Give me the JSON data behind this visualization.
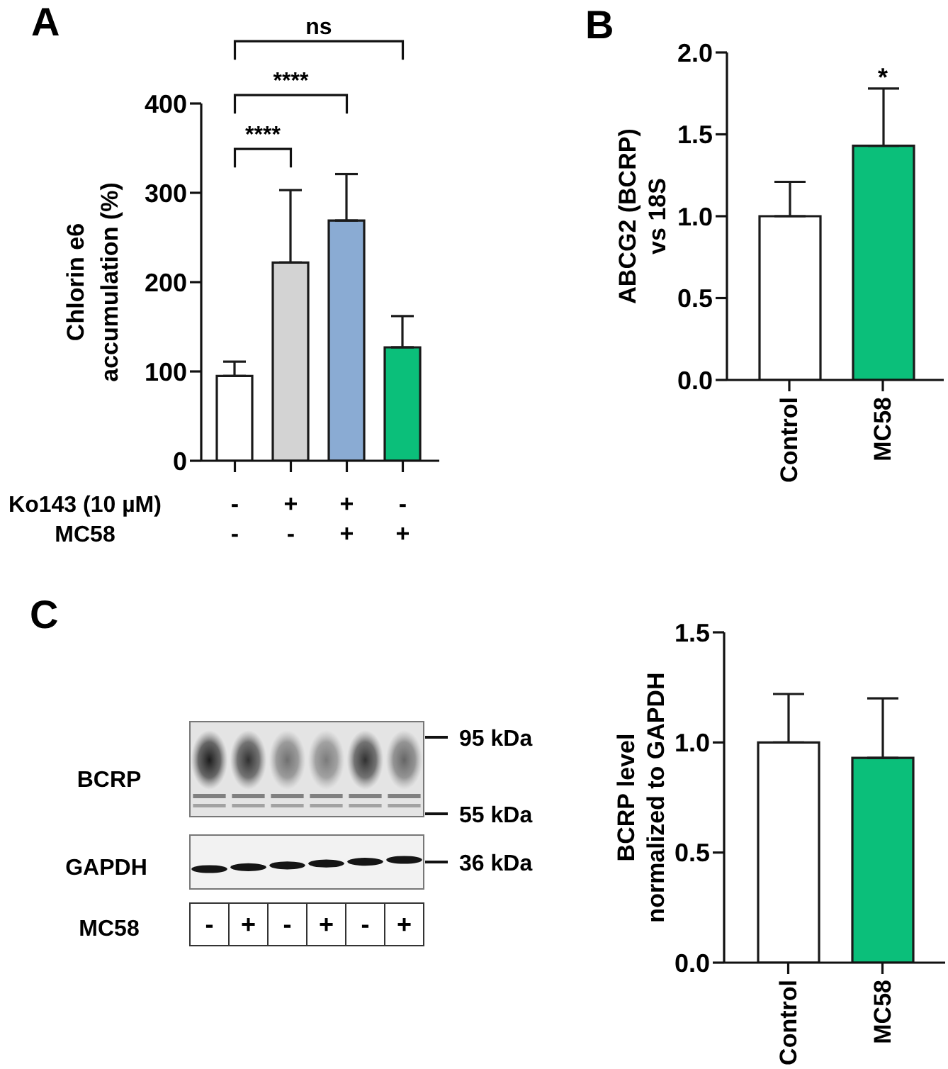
{
  "chart_data": [
    {
      "type": "bar",
      "title": "A",
      "ylabel": "Chlorin e6\naccumulation (%)",
      "categories": [
        "-\n-",
        "+\n-",
        "+\n+",
        "-\n+"
      ],
      "values": [
        95,
        222,
        269,
        127
      ],
      "colors": [
        "#ffffff",
        "#d3d3d3",
        "#8aabd3",
        "#0bbf7a"
      ],
      "errors": [
        [
          95,
          111
        ],
        [
          222,
          303
        ],
        [
          269,
          321
        ],
        [
          127,
          162
        ]
      ],
      "ylim": [
        0,
        400
      ],
      "yticks": [
        0,
        100,
        200,
        300,
        400
      ],
      "annotations": [
        "ns",
        "****",
        "****",
        "Ko143 (10 µM)",
        "MC58"
      ]
    },
    {
      "type": "bar",
      "title": "B",
      "ylabel": "ABCG2 (BCRP)\nvs 18S",
      "categories": [
        "Control",
        "MC58"
      ],
      "values": [
        1.0,
        1.43
      ],
      "colors": [
        "#ffffff",
        "#0bbf7a"
      ],
      "errors": [
        [
          1.0,
          1.21
        ],
        [
          1.43,
          1.78
        ]
      ],
      "ylim": [
        0,
        2
      ],
      "yticks": [
        {
          "value": 0,
          "label": "0.0"
        },
        {
          "value": 0.5,
          "label": "0.5"
        },
        {
          "value": 1,
          "label": "1.0"
        },
        {
          "value": 1.5,
          "label": "1.5"
        },
        {
          "value": 2,
          "label": "2.0"
        }
      ],
      "annotations": [
        "*"
      ]
    },
    {
      "type": "other",
      "title": "C",
      "categories": [
        "-",
        "+",
        "-",
        "+",
        "-",
        "+"
      ],
      "annotations": [
        "BCRP",
        "GAPDH",
        "MC58",
        "95 kDa",
        "55 kDa",
        "36 kDa"
      ]
    },
    {
      "type": "bar",
      "ylabel": "BCRP level\nnormalized to GAPDH",
      "categories": [
        "Control",
        "MC58"
      ],
      "values": [
        1.0,
        0.93
      ],
      "colors": [
        "#ffffff",
        "#0bbf7a"
      ],
      "errors": [
        [
          1.0,
          1.22
        ],
        [
          0.93,
          1.2
        ]
      ],
      "ylim": [
        0,
        1.5
      ],
      "yticks": [
        {
          "value": 0,
          "label": "0.0"
        },
        {
          "value": 0.5,
          "label": "0.5"
        },
        {
          "value": 1,
          "label": "1.0"
        },
        {
          "value": 1.5,
          "label": "1.5"
        }
      ]
    }
  ]
}
